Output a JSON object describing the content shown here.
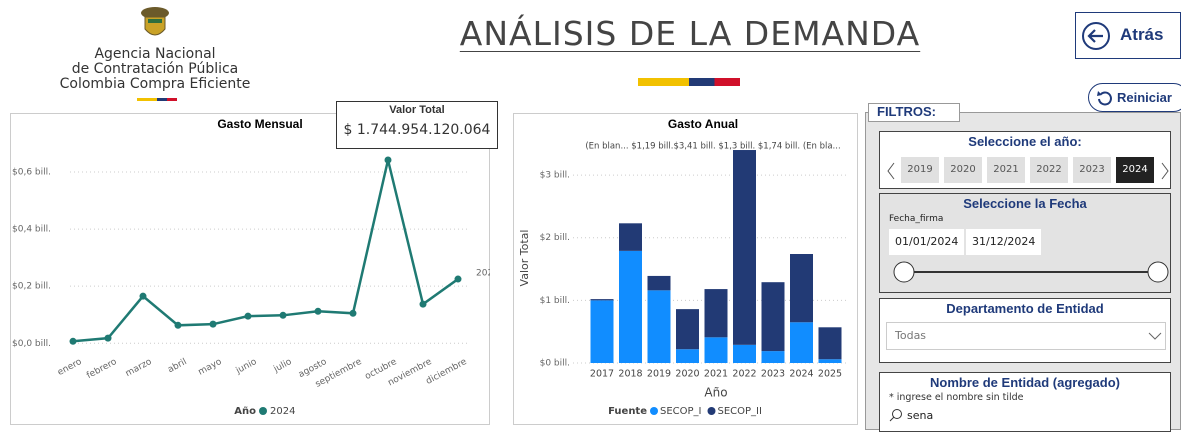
{
  "header": {
    "agency": [
      "Agencia Nacional",
      "de Contratación Pública",
      "Colombia Compra Eficiente"
    ],
    "title": "ANÁLISIS DE LA DEMANDA",
    "back_button": "Atrás",
    "reset_button": "Reiniciar"
  },
  "card": {
    "label": "Valor Total",
    "value": "$ 1.744.954.120.064"
  },
  "chart_data": [
    {
      "type": "line",
      "title": "Gasto Mensual",
      "categories": [
        "enero",
        "febrero",
        "marzo",
        "abril",
        "mayo",
        "junio",
        "julio",
        "agosto",
        "septiembre",
        "octubre",
        "noviembre",
        "diciembre"
      ],
      "series": [
        {
          "name": "2024",
          "color": "#1f7a73",
          "values": [
            0.007,
            0.018,
            0.165,
            0.063,
            0.067,
            0.095,
            0.098,
            0.112,
            0.105,
            0.642,
            0.137,
            0.225
          ]
        }
      ],
      "legend_title": "Año",
      "ylim": [
        -0.02,
        0.712
      ],
      "yticks": [
        {
          "value": 0,
          "label": "$0,0 bill."
        },
        {
          "value": 0.2,
          "label": "$0,2 bill."
        },
        {
          "value": 0.4,
          "label": "$0,4 bill."
        },
        {
          "value": 0.6,
          "label": "$0,6 bill."
        }
      ],
      "grid": true
    },
    {
      "type": "stacked_bar",
      "title": "Gasto Anual",
      "annotation": "(En blan... $1,19 bill.$3,41 bill.  $1,3 bill. $1,74 bill. (En bla...",
      "categories": [
        "2017",
        "2018",
        "2019",
        "2020",
        "2021",
        "2022",
        "2023",
        "2024",
        "2025"
      ],
      "series": [
        {
          "name": "SECOP_I",
          "color": "#118dff",
          "values": [
            1.0,
            1.79,
            1.16,
            0.22,
            0.41,
            0.29,
            0.19,
            0.65,
            0.06
          ]
        },
        {
          "name": "SECOP_II",
          "color": "#223a75",
          "values": [
            0.02,
            0.44,
            0.23,
            0.64,
            0.77,
            3.11,
            1.1,
            1.09,
            0.51
          ]
        }
      ],
      "legend_title": "Fuente",
      "x_label": "Año",
      "y_label": "Valor Total",
      "ylim": [
        0,
        3.56
      ],
      "yticks": [
        {
          "value": 0,
          "label": "$0 bill."
        },
        {
          "value": 1,
          "label": "$1 bill."
        },
        {
          "value": 2,
          "label": "$2 bill."
        },
        {
          "value": 3,
          "label": "$3 bill."
        }
      ],
      "grid": true
    }
  ],
  "filters": {
    "title": "FILTROS:",
    "year": {
      "title": "Seleccione el año:",
      "options": [
        "2019",
        "2020",
        "2021",
        "2022",
        "2023",
        "2024"
      ],
      "selected": "2024"
    },
    "date": {
      "title": "Seleccione la Fecha",
      "field": "Fecha_firma",
      "start": "01/01/2024",
      "end": "31/12/2024"
    },
    "department": {
      "title": "Departamento de Entidad",
      "value": "Todas"
    },
    "entity": {
      "title": "Nombre de Entidad (agregado)",
      "hint": "* ingrese el nombre sin tilde",
      "search": "sena"
    }
  }
}
